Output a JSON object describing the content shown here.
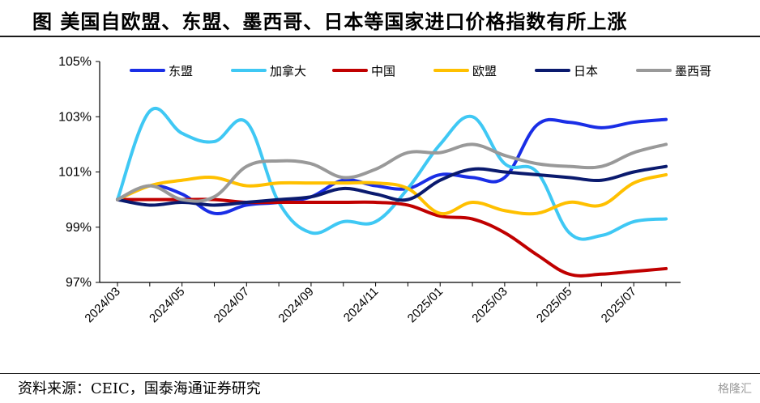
{
  "header": {
    "title": "图 美国自欧盟、东盟、墨西哥、日本等国家进口价格指数有所上涨"
  },
  "footer": {
    "source": "资料来源：CEIC，国泰海通证券研究",
    "watermark": "格隆汇"
  },
  "chart_data": {
    "type": "line",
    "title": "",
    "xlabel": "",
    "ylabel": "",
    "ylim": [
      97,
      105
    ],
    "yticks": [
      "97%",
      "99%",
      "101%",
      "103%",
      "105%"
    ],
    "xticks": [
      "2024/03",
      "2024/05",
      "2024/07",
      "2024/09",
      "2024/11",
      "2025/01",
      "2025/03",
      "2025/05",
      "2025/07"
    ],
    "x": [
      "2024/03",
      "2024/04",
      "2024/05",
      "2024/06",
      "2024/07",
      "2024/08",
      "2024/09",
      "2024/10",
      "2024/11",
      "2024/12",
      "2025/01",
      "2025/02",
      "2025/03",
      "2025/04",
      "2025/05",
      "2025/06",
      "2025/07",
      "2025/08"
    ],
    "legend_position": "top",
    "grid": false,
    "series": [
      {
        "name": "东盟",
        "color": "#1a2ee6",
        "values": [
          100.0,
          100.5,
          100.2,
          99.5,
          99.8,
          99.9,
          100.1,
          100.7,
          100.5,
          100.4,
          100.9,
          100.8,
          100.8,
          102.7,
          102.8,
          102.6,
          102.8,
          102.9
        ]
      },
      {
        "name": "加拿大",
        "color": "#3fc8f4",
        "values": [
          100.0,
          103.2,
          102.4,
          102.1,
          102.8,
          99.9,
          98.8,
          99.2,
          99.2,
          100.4,
          102.0,
          103.0,
          101.3,
          101.0,
          98.8,
          98.7,
          99.2,
          99.3
        ]
      },
      {
        "name": "中国",
        "color": "#c00000",
        "values": [
          100.0,
          100.0,
          100.0,
          100.0,
          99.9,
          99.9,
          99.9,
          99.9,
          99.9,
          99.8,
          99.4,
          99.3,
          98.8,
          98.0,
          97.3,
          97.3,
          97.4,
          97.5
        ]
      },
      {
        "name": "欧盟",
        "color": "#ffc000",
        "values": [
          100.0,
          100.5,
          100.7,
          100.8,
          100.5,
          100.6,
          100.6,
          100.6,
          100.6,
          100.4,
          99.5,
          99.9,
          99.6,
          99.5,
          99.9,
          99.8,
          100.6,
          100.9
        ]
      },
      {
        "name": "日本",
        "color": "#0a1a6e",
        "values": [
          100.0,
          99.8,
          99.9,
          99.8,
          99.9,
          100.0,
          100.1,
          100.4,
          100.2,
          100.0,
          100.7,
          101.1,
          101.0,
          100.9,
          100.8,
          100.7,
          101.0,
          101.2
        ]
      },
      {
        "name": "墨西哥",
        "color": "#999999",
        "values": [
          100.0,
          100.5,
          100.0,
          100.1,
          101.2,
          101.4,
          101.3,
          100.8,
          101.1,
          101.7,
          101.7,
          102.0,
          101.6,
          101.3,
          101.2,
          101.2,
          101.7,
          102.0
        ]
      }
    ]
  }
}
